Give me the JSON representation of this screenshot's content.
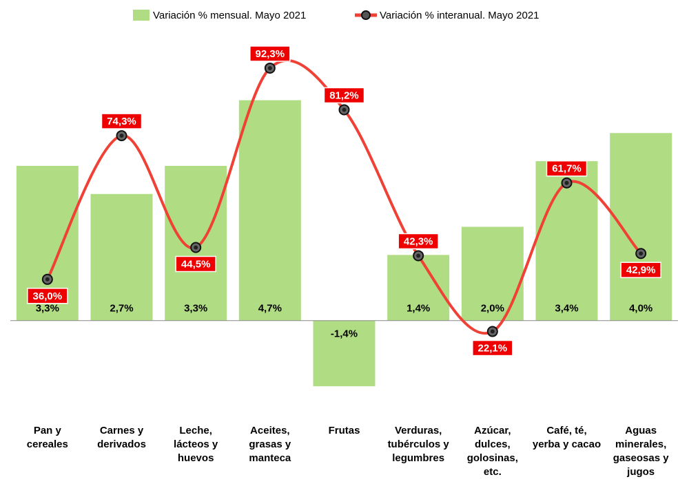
{
  "chart_data": {
    "type": "bar-line",
    "categories": [
      "Pan y cereales",
      "Carnes y derivados",
      "Leche, lácteos y huevos",
      "Aceites, grasas y manteca",
      "Frutas",
      "Verduras, tubérculos y legumbres",
      "Azúcar, dulces, golosinas, etc.",
      "Café, té, yerba y cacao",
      "Aguas minerales, gaseosas y jugos"
    ],
    "series": [
      {
        "name": "Variación % mensual. Mayo 2021",
        "type": "bar",
        "color": "#b0dd84",
        "values": [
          3.3,
          2.7,
          3.3,
          4.7,
          -1.4,
          1.4,
          2.0,
          3.4,
          4.0
        ],
        "value_labels": [
          "3,3%",
          "2,7%",
          "3,3%",
          "4,7%",
          "-1,4%",
          "1,4%",
          "2,0%",
          "3,4%",
          "4,0%"
        ]
      },
      {
        "name": "Variación % interanual. Mayo 2021",
        "type": "line",
        "axis": "y2",
        "color": "#ef4136",
        "values": [
          36.0,
          74.3,
          44.5,
          92.3,
          81.2,
          42.3,
          22.1,
          61.7,
          42.9
        ],
        "value_labels": [
          "36,0%",
          "74,3%",
          "44,5%",
          "92,3%",
          "81,2%",
          "42,3%",
          "22,1%",
          "61,7%",
          "42,9%"
        ]
      }
    ],
    "ylim": [
      -2,
      6
    ],
    "y2lim": [
      0,
      100
    ],
    "grid": false,
    "legend": "top"
  }
}
